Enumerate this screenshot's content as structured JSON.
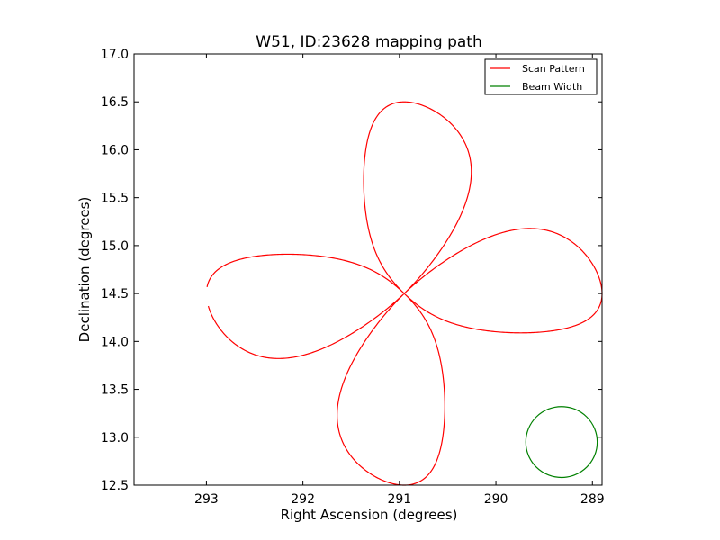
{
  "chart_data": {
    "type": "line",
    "title": "W51, ID:23628 mapping path",
    "xlabel": "Right Ascension (degrees)",
    "ylabel": "Declination (degrees)",
    "xlim": [
      293.75,
      288.9
    ],
    "ylim": [
      12.5,
      17.0
    ],
    "x_inverted": true,
    "grid": false,
    "legend_position": "top-right",
    "xticks": [
      293,
      292,
      291,
      290,
      289
    ],
    "xtick_labels": [
      "293",
      "292",
      "291",
      "290",
      "289"
    ],
    "yticks": [
      12.5,
      13.0,
      13.5,
      14.0,
      14.5,
      15.0,
      15.5,
      16.0,
      16.5,
      17.0
    ],
    "ytick_labels": [
      "12.5",
      "13.0",
      "13.5",
      "14.0",
      "14.5",
      "15.0",
      "15.5",
      "16.0",
      "16.5",
      "17.0"
    ],
    "series": [
      {
        "name": "Scan Pattern",
        "color": "#ff0000",
        "shape": "four-petal rose curve",
        "center": [
          290.95,
          14.5
        ],
        "petal_reach_ra": 2.05,
        "petal_reach_dec": 2.0,
        "petal_width": 0.55,
        "petal_tips": [
          [
            293.0,
            14.5
          ],
          [
            288.9,
            14.5
          ],
          [
            290.95,
            16.5
          ],
          [
            290.95,
            12.5
          ]
        ],
        "gap_near": [
          293.0,
          14.47
        ]
      },
      {
        "name": "Beam Width",
        "color": "#008000",
        "shape": "circle",
        "center": [
          289.32,
          12.95
        ],
        "radius_ra": 0.37,
        "radius_dec": 0.37
      }
    ]
  }
}
